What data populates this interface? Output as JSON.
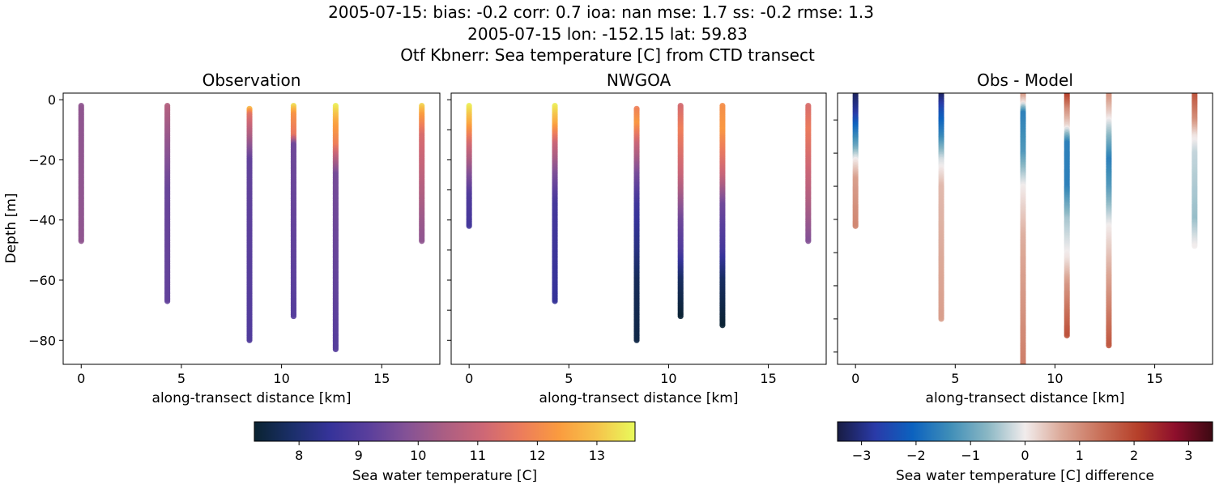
{
  "titles": [
    "2005-07-15: bias: -0.2  corr: 0.7  ioa: nan  mse: 1.7  ss: -0.2  rmse: 1.3",
    "2005-07-15 lon: -152.15 lat: 59.83",
    "Otf Kbnerr: Sea temperature [C] from CTD transect"
  ],
  "chart_data": [
    {
      "type": "scatter",
      "title": "Observation",
      "xlabel": "along-transect distance [km]",
      "ylabel": "Depth [m]",
      "xlim": [
        -0.9,
        17.9
      ],
      "ylim": [
        -88,
        2.2
      ],
      "xticks": [
        0,
        5,
        10,
        15
      ],
      "yticks": [
        0,
        -20,
        -40,
        -60,
        -80
      ],
      "show_ytick_labels": true,
      "colormap": "thermal",
      "clim": [
        7.25,
        13.64
      ],
      "profiles": [
        {
          "x": 0,
          "points": [
            [
              -2,
              10.0
            ],
            [
              -47,
              10.0
            ]
          ]
        },
        {
          "x": 4.3,
          "points": [
            [
              -2,
              10.6
            ],
            [
              -30,
              9.4
            ],
            [
              -67,
              9.3
            ]
          ]
        },
        {
          "x": 8.4,
          "points": [
            [
              -3,
              12.8
            ],
            [
              -5,
              11.5
            ],
            [
              -12,
              10.5
            ],
            [
              -20,
              9.3
            ],
            [
              -80,
              9.0
            ]
          ]
        },
        {
          "x": 10.6,
          "points": [
            [
              -2,
              13.3
            ],
            [
              -5,
              12.2
            ],
            [
              -12,
              11.6
            ],
            [
              -15,
              9.5
            ],
            [
              -72,
              9.1
            ]
          ]
        },
        {
          "x": 12.7,
          "points": [
            [
              -2,
              13.5
            ],
            [
              -8,
              12.5
            ],
            [
              -15,
              11.8
            ],
            [
              -20,
              10.6
            ],
            [
              -25,
              9.6
            ],
            [
              -83,
              9.1
            ]
          ]
        },
        {
          "x": 17.0,
          "points": [
            [
              -2,
              13.2
            ],
            [
              -5,
              12.4
            ],
            [
              -12,
              11.3
            ],
            [
              -25,
              10.8
            ],
            [
              -40,
              10.2
            ],
            [
              -47,
              10.0
            ]
          ]
        }
      ]
    },
    {
      "type": "scatter",
      "title": "NWGOA",
      "xlabel": "along-transect distance [km]",
      "xlim": [
        -0.9,
        17.9
      ],
      "ylim": [
        -88,
        2.2
      ],
      "xticks": [
        0,
        5,
        10,
        15
      ],
      "yticks": [
        0,
        -10,
        -20,
        -30,
        -40,
        -50,
        -60,
        -70,
        -80
      ],
      "show_ytick_labels": false,
      "colormap": "thermal",
      "clim": [
        7.25,
        13.64
      ],
      "profiles": [
        {
          "x": 0,
          "points": [
            [
              -2,
              13.5
            ],
            [
              -8,
              12.6
            ],
            [
              -15,
              11.2
            ],
            [
              -25,
              9.8
            ],
            [
              -32,
              9.0
            ],
            [
              -42,
              8.8
            ]
          ]
        },
        {
          "x": 4.3,
          "points": [
            [
              -2,
              13.5
            ],
            [
              -8,
              12.6
            ],
            [
              -15,
              11.0
            ],
            [
              -25,
              9.7
            ],
            [
              -35,
              8.8
            ],
            [
              -67,
              8.5
            ]
          ]
        },
        {
          "x": 8.4,
          "points": [
            [
              -3,
              11.8
            ],
            [
              -8,
              12.3
            ],
            [
              -15,
              11.0
            ],
            [
              -25,
              9.6
            ],
            [
              -35,
              8.7
            ],
            [
              -50,
              8.2
            ],
            [
              -60,
              7.7
            ],
            [
              -80,
              7.5
            ]
          ]
        },
        {
          "x": 10.6,
          "points": [
            [
              -2,
              11.2
            ],
            [
              -10,
              11.8
            ],
            [
              -25,
              11.0
            ],
            [
              -40,
              9.5
            ],
            [
              -50,
              9.0
            ],
            [
              -60,
              7.8
            ],
            [
              -72,
              7.3
            ]
          ]
        },
        {
          "x": 12.7,
          "points": [
            [
              -2,
              12.1
            ],
            [
              -10,
              12.3
            ],
            [
              -25,
              11.0
            ],
            [
              -35,
              9.5
            ],
            [
              -50,
              8.8
            ],
            [
              -60,
              7.8
            ],
            [
              -75,
              7.3
            ]
          ]
        },
        {
          "x": 17.0,
          "points": [
            [
              -2,
              11.3
            ],
            [
              -10,
              11.7
            ],
            [
              -25,
              11.0
            ],
            [
              -40,
              10.2
            ],
            [
              -47,
              9.8
            ]
          ]
        }
      ]
    },
    {
      "type": "scatter",
      "title": "Obs - Model",
      "xlabel": "along-transect distance [km]",
      "xlim": [
        -0.9,
        17.9
      ],
      "ylim": [
        -83.7,
        -1.9
      ],
      "xticks": [
        0,
        5,
        10,
        15
      ],
      "yticks": [
        -10,
        -20,
        -30,
        -40,
        -50,
        -60,
        -70,
        -80
      ],
      "show_ytick_labels": false,
      "colormap": "balance",
      "clim": [
        -3.44,
        3.44
      ],
      "profiles": [
        {
          "x": 0,
          "points": [
            [
              -2,
              -3.3
            ],
            [
              -8,
              -2.8
            ],
            [
              -12,
              -2.0
            ],
            [
              -18,
              -1.0
            ],
            [
              -22,
              0
            ],
            [
              -28,
              0.8
            ],
            [
              -42,
              1.1
            ]
          ]
        },
        {
          "x": 4.3,
          "points": [
            [
              -2,
              -3.3
            ],
            [
              -8,
              -2.3
            ],
            [
              -15,
              -1.5
            ],
            [
              -22,
              -0.2
            ],
            [
              -30,
              0.5
            ],
            [
              -70,
              0.8
            ]
          ]
        },
        {
          "x": 8.4,
          "points": [
            [
              -2,
              1.0
            ],
            [
              -5,
              0.1
            ],
            [
              -8,
              -1.6
            ],
            [
              -20,
              -1.2
            ],
            [
              -30,
              0
            ],
            [
              -45,
              0.6
            ],
            [
              -84,
              1.2
            ]
          ]
        },
        {
          "x": 10.6,
          "points": [
            [
              -2,
              2.2
            ],
            [
              -7,
              1.0
            ],
            [
              -12,
              0.2
            ],
            [
              -17,
              -1.6
            ],
            [
              -30,
              -1.6
            ],
            [
              -40,
              -0.5
            ],
            [
              -52,
              0.1
            ],
            [
              -60,
              0.9
            ],
            [
              -75,
              1.8
            ]
          ]
        },
        {
          "x": 12.7,
          "points": [
            [
              -2,
              1.0
            ],
            [
              -8,
              0.3
            ],
            [
              -12,
              -0.3
            ],
            [
              -22,
              -1.6
            ],
            [
              -30,
              -1.2
            ],
            [
              -42,
              0.0
            ],
            [
              -55,
              0.6
            ],
            [
              -78,
              1.7
            ]
          ]
        },
        {
          "x": 17.0,
          "points": [
            [
              -2,
              1.8
            ],
            [
              -10,
              1.0
            ],
            [
              -15,
              0.1
            ],
            [
              -20,
              -0.3
            ],
            [
              -40,
              -0.6
            ],
            [
              -48,
              0
            ]
          ]
        }
      ]
    }
  ],
  "colorbars": [
    {
      "label": "Sea water temperature [C]",
      "colormap": "thermal",
      "range": [
        7.25,
        13.64
      ],
      "ticks": [
        8,
        9,
        10,
        11,
        12,
        13
      ]
    },
    {
      "label": "Sea water temperature [C] difference",
      "colormap": "balance",
      "range": [
        -3.44,
        3.44
      ],
      "ticks": [
        -3,
        -2,
        -1,
        0,
        1,
        2,
        3
      ]
    }
  ],
  "colormaps": {
    "thermal": [
      "#0a2331",
      "#1b2f6a",
      "#36339a",
      "#5a3f9c",
      "#845296",
      "#ab5e83",
      "#cd6776",
      "#ec7c5c",
      "#fa9b3f",
      "#f6c34b",
      "#e8fa5b"
    ],
    "balance": [
      "#181c43",
      "#2a3aa8",
      "#0c62bf",
      "#3f8eb8",
      "#8ab7c4",
      "#f1ecec",
      "#dba796",
      "#c9715a",
      "#b6402a",
      "#8e0f2c",
      "#3c0912"
    ]
  }
}
